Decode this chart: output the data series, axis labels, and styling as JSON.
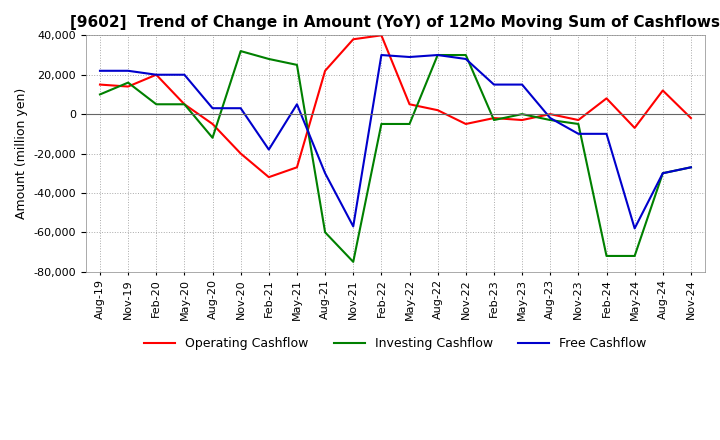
{
  "title": "[9602]  Trend of Change in Amount (YoY) of 12Mo Moving Sum of Cashflows",
  "ylabel": "Amount (million yen)",
  "background_color": "#ffffff",
  "grid_color": "#aaaaaa",
  "grid_style": "dotted",
  "title_fontsize": 11,
  "label_fontsize": 9,
  "tick_fontsize": 8,
  "x_labels": [
    "Aug-19",
    "Nov-19",
    "Feb-20",
    "May-20",
    "Aug-20",
    "Nov-20",
    "Feb-21",
    "May-21",
    "Aug-21",
    "Nov-21",
    "Feb-22",
    "May-22",
    "Aug-22",
    "Nov-22",
    "Feb-23",
    "May-23",
    "Aug-23",
    "Nov-23",
    "Feb-24",
    "May-24",
    "Aug-24",
    "Nov-24"
  ],
  "operating": [
    15000,
    14000,
    20000,
    5000,
    -5000,
    -20000,
    -32000,
    -27000,
    22000,
    38000,
    40000,
    5000,
    2000,
    -5000,
    -2000,
    -3000,
    0,
    -3000,
    8000,
    -7000,
    12000,
    -2000
  ],
  "investing": [
    10000,
    16000,
    5000,
    5000,
    -12000,
    32000,
    28000,
    25000,
    -60000,
    -75000,
    -5000,
    -5000,
    30000,
    30000,
    -3000,
    0,
    -3000,
    -5000,
    -72000,
    -72000,
    -30000,
    -27000
  ],
  "free": [
    22000,
    22000,
    20000,
    20000,
    3000,
    3000,
    -18000,
    5000,
    -30000,
    -57000,
    30000,
    29000,
    30000,
    28000,
    15000,
    15000,
    -2000,
    -10000,
    -10000,
    -58000,
    -30000,
    -27000
  ],
  "op_color": "#ff0000",
  "inv_color": "#008000",
  "free_color": "#0000cc",
  "ylim": [
    -80000,
    40000
  ],
  "yticks": [
    -80000,
    -60000,
    -40000,
    -20000,
    0,
    20000,
    40000
  ]
}
